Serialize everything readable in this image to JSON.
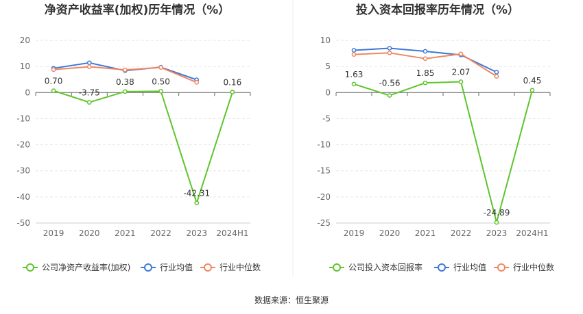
{
  "source": "数据来源：恒生聚源",
  "chart_data": [
    {
      "type": "line",
      "title": "净资产收益率(加权)历年情况（%）",
      "categories": [
        "2019",
        "2020",
        "2021",
        "2022",
        "2023",
        "2024H1"
      ],
      "ylim": [
        -50,
        20
      ],
      "yticks": [
        20,
        10,
        0,
        -10,
        -20,
        -30,
        -40,
        -50
      ],
      "grid": true,
      "legend_position": "bottom",
      "series": [
        {
          "name": "公司净资产收益率(加权)",
          "color": "#5dc52a",
          "values": [
            0.7,
            -3.75,
            0.38,
            0.5,
            -42.31,
            0.16
          ],
          "labels": [
            "0.70",
            "-3.75",
            "0.38",
            "0.50",
            "-42.31",
            "0.16"
          ]
        },
        {
          "name": "行业均值",
          "color": "#3d78d8",
          "values": [
            9.3,
            11.4,
            8.4,
            9.7,
            4.9,
            null
          ]
        },
        {
          "name": "行业中位数",
          "color": "#f08660",
          "values": [
            8.8,
            9.9,
            8.7,
            9.6,
            3.9,
            null
          ]
        }
      ]
    },
    {
      "type": "line",
      "title": "投入资本回报率历年情况（%）",
      "categories": [
        "2019",
        "2020",
        "2021",
        "2022",
        "2023",
        "2024H1"
      ],
      "ylim": [
        -25,
        10
      ],
      "yticks": [
        10,
        5,
        0,
        -5,
        -10,
        -15,
        -20,
        -25
      ],
      "grid": true,
      "legend_position": "bottom",
      "series": [
        {
          "name": "公司投入资本回报率",
          "color": "#5dc52a",
          "values": [
            1.63,
            -0.56,
            1.85,
            2.07,
            -24.89,
            0.45
          ],
          "labels": [
            "1.63",
            "-0.56",
            "1.85",
            "2.07",
            "-24.89",
            "0.45"
          ]
        },
        {
          "name": "行业均值",
          "color": "#3d78d8",
          "values": [
            8.1,
            8.5,
            7.9,
            7.2,
            3.9,
            null
          ]
        },
        {
          "name": "行业中位数",
          "color": "#f08660",
          "values": [
            7.3,
            7.6,
            6.5,
            7.4,
            3.1,
            null
          ]
        }
      ]
    }
  ]
}
